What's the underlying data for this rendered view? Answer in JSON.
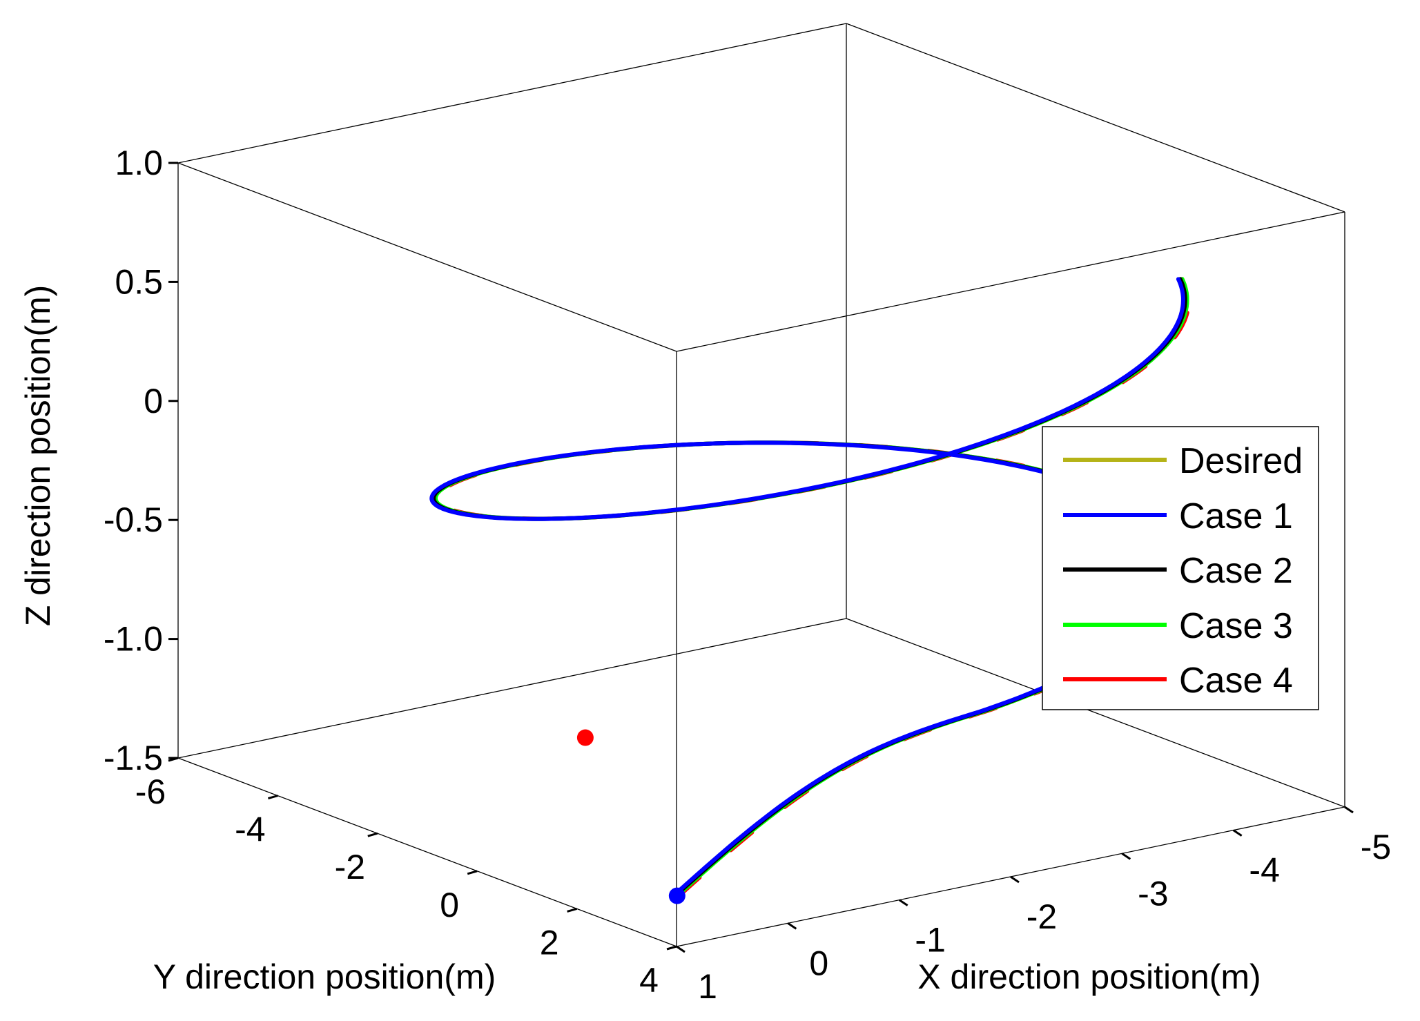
{
  "chart_data": {
    "type": "line3d",
    "title": "",
    "xlabel": "X direction position(m)",
    "ylabel": "Y direction position(m)",
    "zlabel": "Z direction position(m)",
    "xlim": [
      -5,
      1
    ],
    "ylim": [
      -6,
      4
    ],
    "zlim": [
      -1.5,
      1.0
    ],
    "x_ticks": [
      "-5",
      "-4",
      "-3",
      "-2",
      "-1",
      "0",
      "1"
    ],
    "y_ticks": [
      "-6",
      "-4",
      "-2",
      "0",
      "2",
      "4"
    ],
    "z_ticks": [
      "-1.5",
      "-1.0",
      "-0.5",
      "0",
      "0.5",
      "1.0"
    ],
    "grid": false,
    "legend_position": "right",
    "series": [
      {
        "name": "Desired",
        "color": "#b5b317"
      },
      {
        "name": "Case 1",
        "color": "#0000ff"
      },
      {
        "name": "Case 2",
        "color": "#000000"
      },
      {
        "name": "Case 3",
        "color": "#00ff00"
      },
      {
        "name": "Case 4",
        "color": "#ff0000"
      }
    ],
    "helix": {
      "radius": 3,
      "center_x": -2,
      "center_y": 0,
      "z_start": -0.85,
      "z_end": 0.5,
      "turns": 1.2
    },
    "start_markers": [
      {
        "label": "Desired start",
        "x": 0.7,
        "y": 1.5,
        "z": -0.85,
        "color": "#ff0000"
      },
      {
        "label": "Case start",
        "x": 0.95,
        "y": 3.9,
        "z": -1.3,
        "color": "#0000ff"
      }
    ]
  }
}
